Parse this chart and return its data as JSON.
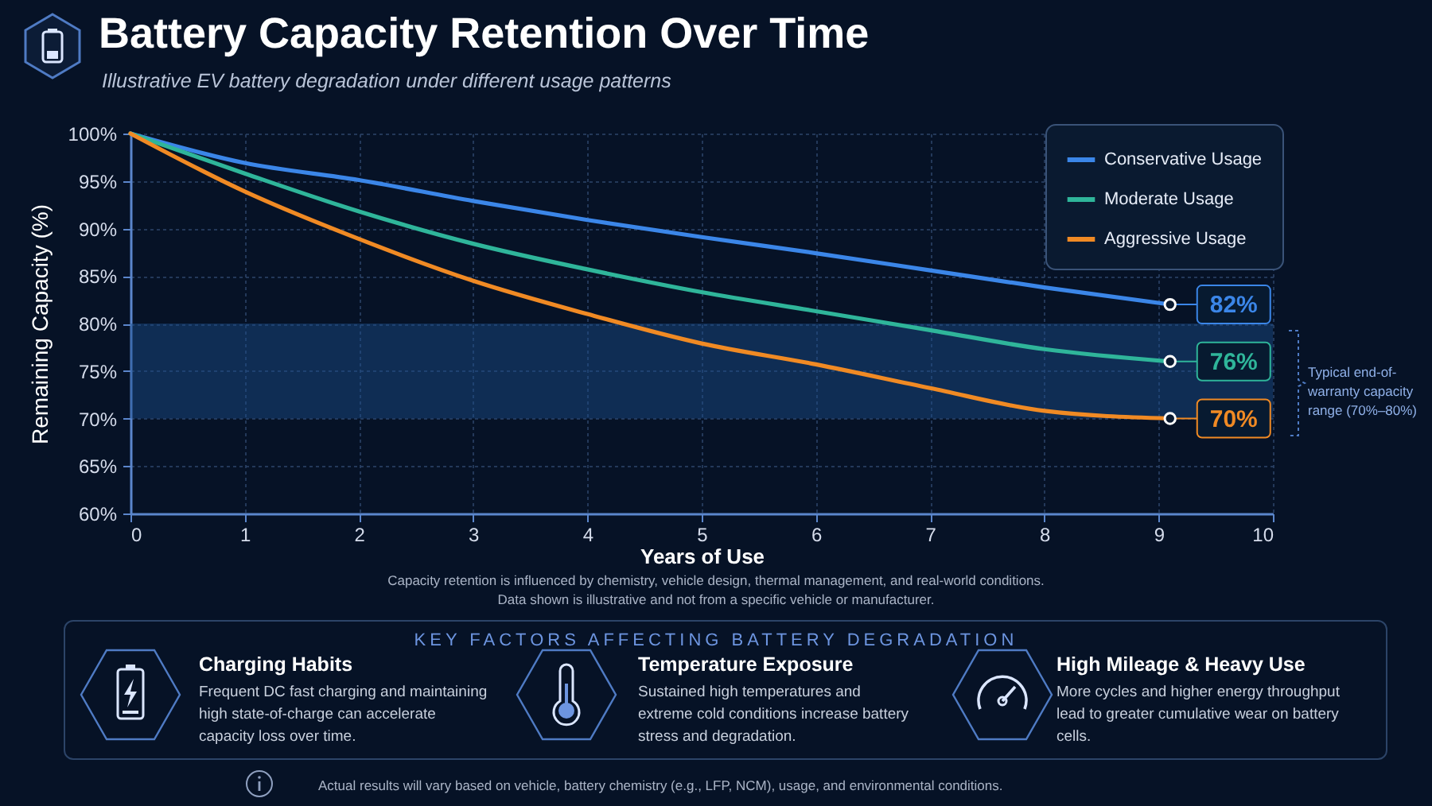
{
  "chart_data": {
    "type": "line",
    "title": "Battery Capacity Retention Over Time",
    "subtitle": "Illustrative EV battery degradation under different usage patterns",
    "xlabel": "Years of Use",
    "ylabel": "Remaining Capacity (%)",
    "x": [
      0,
      1,
      2,
      3,
      4,
      5,
      6,
      7,
      8,
      9.1
    ],
    "series": [
      {
        "name": "Conservative Usage",
        "color": "#3b86e8",
        "values": [
          100,
          96.9,
          95.1,
          92.9,
          90.9,
          89.1,
          87.4,
          85.6,
          83.8,
          82
        ],
        "value_labels": [
          null,
          null,
          null,
          null,
          null,
          null,
          null,
          null,
          null,
          "82%"
        ]
      },
      {
        "name": "Moderate Usage",
        "color": "#2fb59a",
        "values": [
          100,
          95.8,
          91.8,
          88.4,
          85.7,
          83.3,
          81.3,
          79.3,
          77.3,
          76
        ],
        "value_labels": [
          null,
          null,
          null,
          null,
          null,
          null,
          null,
          null,
          null,
          "76%"
        ]
      },
      {
        "name": "Aggressive Usage",
        "color": "#f08a24",
        "values": [
          100,
          93.9,
          88.9,
          84.5,
          81,
          77.9,
          75.7,
          73.2,
          70.8,
          70
        ],
        "value_labels": [
          null,
          null,
          null,
          null,
          null,
          null,
          null,
          null,
          null,
          "70%"
        ]
      }
    ],
    "xlim": [
      0,
      10
    ],
    "xticks": [
      0,
      1,
      2,
      3,
      4,
      5,
      6,
      7,
      8,
      9,
      10
    ],
    "ylim": [
      60,
      100
    ],
    "yticks": [
      {
        "value": 60,
        "label": "60%"
      },
      {
        "value": 65,
        "label": "65%"
      },
      {
        "value": 70,
        "label": "70%"
      },
      {
        "value": 75,
        "label": "75%"
      },
      {
        "value": 80,
        "label": "80%"
      },
      {
        "value": 85,
        "label": "85%"
      },
      {
        "value": 90,
        "label": "90%"
      },
      {
        "value": 95,
        "label": "95%"
      },
      {
        "value": 100,
        "label": "100%"
      }
    ],
    "bands": [
      {
        "axis": "y",
        "from": 70,
        "to": 80,
        "label": "Typical end-of-warranty capacity range (70%–80%)",
        "color": "#1a4f8f"
      }
    ],
    "grid": true,
    "legend": "top right",
    "line_style": "solid",
    "marker": "none",
    "annotations": [
      "Capacity retention is influenced by chemistry, vehicle design, thermal management, and real-world conditions.",
      "Data shown is illustrative and not from a specific vehicle or manufacturer.",
      "KEY FACTORS AFFECTING BATTERY DEGRADATION",
      "Charging Habits",
      "Frequent DC fast charging and maintaining high state-of-charge can accelerate capacity loss over time.",
      "Temperature Exposure",
      "Sustained high temperatures and extreme cold conditions increase battery stress and degradation.",
      "High Mileage & Heavy Use",
      "More cycles and higher energy throughput lead to greater cumulative wear on battery cells.",
      "Actual results will vary based on vehicle, battery chemistry (e.g., LFP, NCM), usage, and environmental conditions."
    ]
  }
}
